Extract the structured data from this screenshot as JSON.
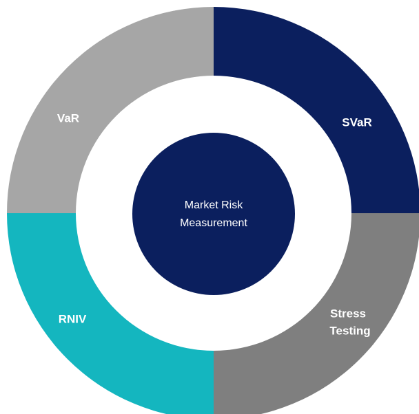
{
  "segments": [
    {
      "label": "SVaR"
    },
    {
      "label_lines": [
        "Stress",
        "Testing"
      ]
    },
    {
      "label": "RNIV"
    },
    {
      "label": "VaR"
    }
  ],
  "center": {
    "label_lines": [
      "Market Risk",
      "Measurement"
    ]
  }
}
